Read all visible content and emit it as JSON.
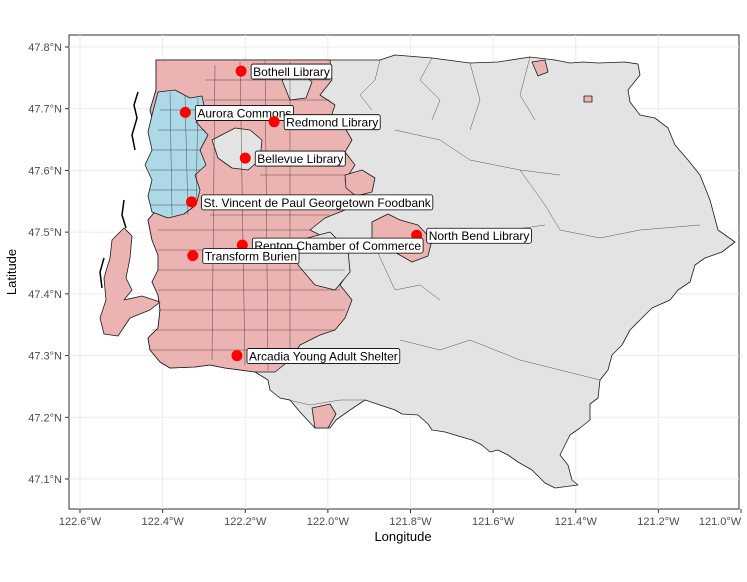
{
  "map": {
    "x_axis": {
      "title": "Longitude",
      "ticks": [
        {
          "value": -122.6,
          "label": "122.6°W"
        },
        {
          "value": -122.4,
          "label": "122.4°W"
        },
        {
          "value": -122.2,
          "label": "122.2°W"
        },
        {
          "value": -122.0,
          "label": "122.0°W"
        },
        {
          "value": -121.8,
          "label": "121.8°W"
        },
        {
          "value": -121.6,
          "label": "121.6°W"
        },
        {
          "value": -121.4,
          "label": "121.4°W"
        },
        {
          "value": -121.2,
          "label": "121.2°W"
        },
        {
          "value": -121.0,
          "label": "121.0°W"
        }
      ],
      "range": [
        -122.62,
        -121.0
      ]
    },
    "y_axis": {
      "title": "Latitude",
      "ticks": [
        {
          "value": 47.8,
          "label": "47.8°N"
        },
        {
          "value": 47.7,
          "label": "47.7°N"
        },
        {
          "value": 47.6,
          "label": "47.6°N"
        },
        {
          "value": 47.5,
          "label": "47.5°N"
        },
        {
          "value": 47.4,
          "label": "47.4°N"
        },
        {
          "value": 47.3,
          "label": "47.3°N"
        },
        {
          "value": 47.2,
          "label": "47.2°N"
        },
        {
          "value": 47.1,
          "label": "47.1°N"
        }
      ],
      "range": [
        47.05,
        47.81
      ]
    },
    "grid": true,
    "colors": {
      "panel_background": "#ffffff",
      "grid": "#ebebeb",
      "county_fill": "#e3e3e3",
      "tract_fill_pink": "#ecb3b3",
      "tract_fill_blue": "#add8e6",
      "boundary": "#1a1a1a",
      "site_point": "#ff0000"
    },
    "sites": [
      {
        "name": "Bothell Library",
        "lon": -122.21,
        "lat": 47.761
      },
      {
        "name": "Aurora Commons",
        "lon": -122.345,
        "lat": 47.694
      },
      {
        "name": "Redmond Library",
        "lon": -122.13,
        "lat": 47.679
      },
      {
        "name": "Bellevue Library",
        "lon": -122.2,
        "lat": 47.62
      },
      {
        "name": "St. Vincent de Paul Georgetown Foodbank",
        "lon": -122.33,
        "lat": 47.549
      },
      {
        "name": "North Bend Library",
        "lon": -121.785,
        "lat": 47.495
      },
      {
        "name": "Renton Chamber of Commerce",
        "lon": -122.207,
        "lat": 47.479
      },
      {
        "name": "Transform Burien",
        "lon": -122.327,
        "lat": 47.462
      },
      {
        "name": "Arcadia Young Adult Shelter",
        "lon": -122.22,
        "lat": 47.3
      }
    ]
  }
}
